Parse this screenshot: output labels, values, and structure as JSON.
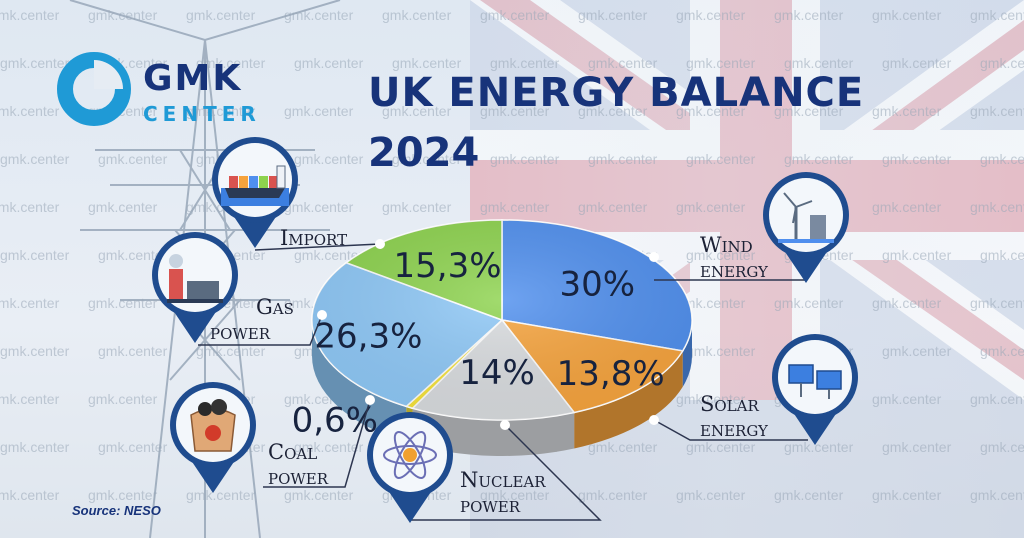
{
  "brand": {
    "name": "GMK",
    "sub": "CENTER",
    "watermark": "gmk.center"
  },
  "title": "UK ENERGY BALANCE",
  "subtitle": "2024",
  "source": "Source: NESO",
  "colors": {
    "wind": "#4f8fee",
    "solar": "#f6a33c",
    "nuclear": "#d9dcdf",
    "coal": "#f6e43a",
    "gas": "#8ec8f7",
    "import": "#8dd34e",
    "navy": "#17337a"
  },
  "icons": [
    "wind-turbine-icon",
    "solar-panel-icon",
    "atom-icon",
    "coal-bag-icon",
    "gas-plant-icon",
    "cargo-ship-icon"
  ],
  "labels": {
    "wind": [
      "Wind",
      "energy"
    ],
    "solar": [
      "Solar",
      "energy"
    ],
    "nuclear": [
      "Nuclear",
      "power"
    ],
    "coal": [
      "Coal",
      "power"
    ],
    "gas": [
      "Gas",
      "power"
    ],
    "import": [
      "Import"
    ]
  },
  "chart_data": {
    "type": "pie",
    "title": "UK ENERGY BALANCE",
    "subtitle": "2024",
    "slices": [
      {
        "key": "wind",
        "value": 30,
        "label": "30%",
        "color": "#4f8fee"
      },
      {
        "key": "solar",
        "value": 13.8,
        "label": "13,8%",
        "color": "#f6a33c"
      },
      {
        "key": "nuclear",
        "value": 14,
        "label": "14%",
        "color": "#d9dcdf"
      },
      {
        "key": "coal",
        "value": 0.6,
        "label": "0,6%",
        "color": "#f6e43a"
      },
      {
        "key": "gas",
        "value": 26.3,
        "label": "26,3%",
        "color": "#8ec8f7"
      },
      {
        "key": "import",
        "value": 15.3,
        "label": "15,3%",
        "color": "#8dd34e"
      }
    ]
  }
}
